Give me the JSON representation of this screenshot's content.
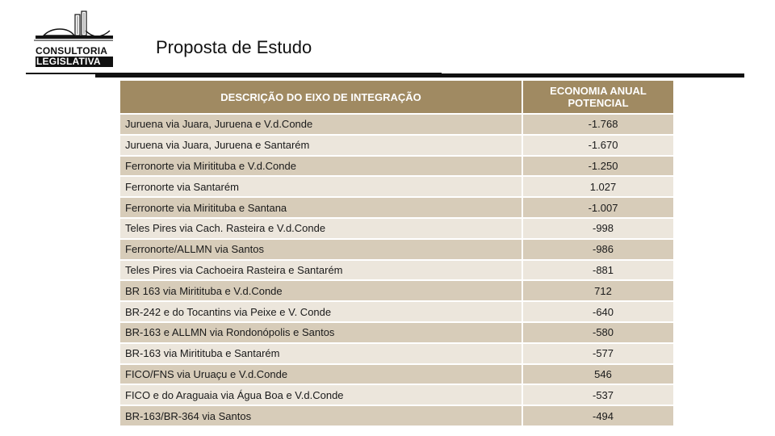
{
  "header": {
    "logo": {
      "line1": "CONSULTORIA",
      "line2": "LEGISLATIVA"
    },
    "title": "Proposta de Estudo"
  },
  "table": {
    "columns": [
      "DESCRIÇÃO DO EIXO DE INTEGRAÇÃO",
      "ECONOMIA ANUAL POTENCIAL"
    ],
    "rows": [
      {
        "desc": "Juruena via Juara, Juruena e V.d.Conde",
        "value": "-1.768"
      },
      {
        "desc": "Juruena via Juara, Juruena e Santarém",
        "value": "-1.670"
      },
      {
        "desc": "Ferronorte via Miritituba e V.d.Conde",
        "value": "-1.250"
      },
      {
        "desc": "Ferronorte via Santarém",
        "value": "1.027"
      },
      {
        "desc": "Ferronorte via Miritituba e Santana",
        "value": "-1.007"
      },
      {
        "desc": "Teles Pires via Cach. Rasteira e V.d.Conde",
        "value": "-998"
      },
      {
        "desc": "Ferronorte/ALLMN via Santos",
        "value": "-986"
      },
      {
        "desc": "Teles Pires via Cachoeira Rasteira e Santarém",
        "value": "-881"
      },
      {
        "desc": "BR 163 via Miritituba e V.d.Conde",
        "value": "712"
      },
      {
        "desc": "BR-242 e do Tocantins via Peixe e V. Conde",
        "value": "-640"
      },
      {
        "desc": "BR-163 e ALLMN via Rondonópolis e Santos",
        "value": "-580"
      },
      {
        "desc": "BR-163 via Miritituba e Santarém",
        "value": "-577"
      },
      {
        "desc": "FICO/FNS via Uruaçu e V.d.Conde",
        "value": "546"
      },
      {
        "desc": "FICO e do Araguaia via Água Boa e V.d.Conde",
        "value": "-537"
      },
      {
        "desc": "BR-163/BR-364 via Santos",
        "value": "-494"
      }
    ]
  },
  "colors": {
    "header_bg": "#a08a62",
    "row_dark": "#d7ccb9",
    "row_light": "#ece6dc"
  }
}
